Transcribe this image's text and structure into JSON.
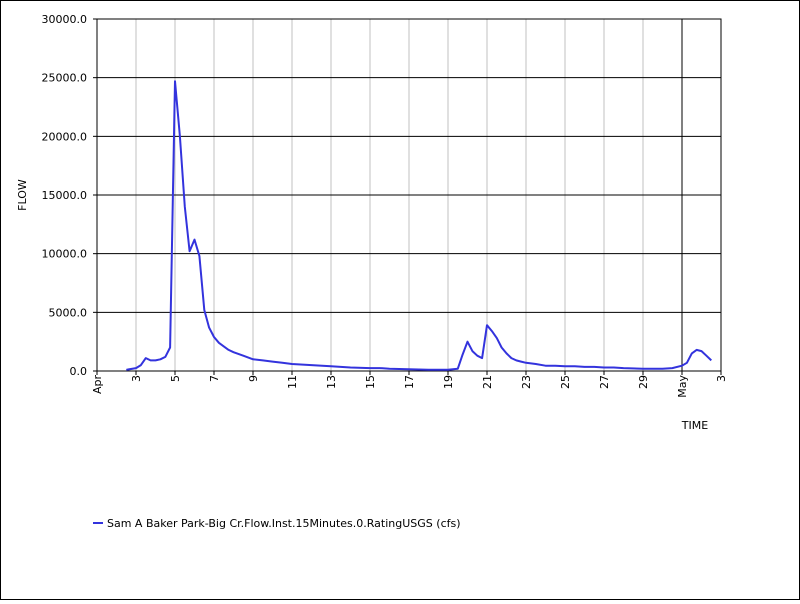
{
  "chart_data": {
    "type": "line",
    "title": "",
    "xlabel": "TIME",
    "ylabel": "FLOW",
    "ylim": [
      0,
      30000
    ],
    "yticks": [
      0,
      5000,
      10000,
      15000,
      20000,
      25000,
      30000
    ],
    "ytick_labels": [
      "0.0",
      "5000.0",
      "10000.0",
      "15000.0",
      "20000.0",
      "25000.0",
      "30000.0"
    ],
    "xlim": [
      "Apr 1",
      "May 3"
    ],
    "xtick_labels": [
      {
        "date": "Apr 1",
        "label": "Apr",
        "major": true
      },
      {
        "date": "Apr 3",
        "label": "3",
        "major": false
      },
      {
        "date": "Apr 5",
        "label": "5",
        "major": false
      },
      {
        "date": "Apr 7",
        "label": "7",
        "major": false
      },
      {
        "date": "Apr 9",
        "label": "9",
        "major": false
      },
      {
        "date": "Apr 11",
        "label": "11",
        "major": false
      },
      {
        "date": "Apr 13",
        "label": "13",
        "major": false
      },
      {
        "date": "Apr 15",
        "label": "15",
        "major": false
      },
      {
        "date": "Apr 17",
        "label": "17",
        "major": false
      },
      {
        "date": "Apr 19",
        "label": "19",
        "major": false
      },
      {
        "date": "Apr 21",
        "label": "21",
        "major": false
      },
      {
        "date": "Apr 23",
        "label": "23",
        "major": false
      },
      {
        "date": "Apr 25",
        "label": "25",
        "major": false
      },
      {
        "date": "Apr 27",
        "label": "27",
        "major": false
      },
      {
        "date": "Apr 29",
        "label": "29",
        "major": false
      },
      {
        "date": "May 1",
        "label": "May",
        "major": true
      },
      {
        "date": "May 3",
        "label": "3",
        "major": false
      }
    ],
    "grid": true,
    "legend_position": "bottom-left",
    "series": [
      {
        "name": "Sam A Baker Park-Big Cr.Flow.Inst.15Minutes.0.RatingUSGS (cfs)",
        "color": "#3333dd",
        "x": [
          "Apr 2 12:00",
          "Apr 3",
          "Apr 3 06:00",
          "Apr 3 12:00",
          "Apr 3 18:00",
          "Apr 4",
          "Apr 4 06:00",
          "Apr 4 12:00",
          "Apr 4 18:00",
          "Apr 5",
          "Apr 5 06:00",
          "Apr 5 12:00",
          "Apr 5 18:00",
          "Apr 6",
          "Apr 6 06:00",
          "Apr 6 12:00",
          "Apr 6 18:00",
          "Apr 7",
          "Apr 7 06:00",
          "Apr 7 12:00",
          "Apr 7 18:00",
          "Apr 8",
          "Apr 8 12:00",
          "Apr 9",
          "Apr 9 12:00",
          "Apr 10",
          "Apr 10 12:00",
          "Apr 11",
          "Apr 12",
          "Apr 13",
          "Apr 14",
          "Apr 15",
          "Apr 15 12:00",
          "Apr 16",
          "Apr 17",
          "Apr 18",
          "Apr 19",
          "Apr 19 12:00",
          "Apr 19 18:00",
          "Apr 20",
          "Apr 20 06:00",
          "Apr 20 12:00",
          "Apr 20 18:00",
          "Apr 21",
          "Apr 21 06:00",
          "Apr 21 12:00",
          "Apr 21 18:00",
          "Apr 22",
          "Apr 22 06:00",
          "Apr 22 12:00",
          "Apr 22 18:00",
          "Apr 23",
          "Apr 23 12:00",
          "Apr 24",
          "Apr 24 12:00",
          "Apr 25",
          "Apr 25 12:00",
          "Apr 26",
          "Apr 26 12:00",
          "Apr 27",
          "Apr 27 12:00",
          "Apr 28",
          "Apr 29",
          "Apr 30",
          "Apr 30 12:00",
          "May 1",
          "May 1 06:00",
          "May 1 12:00",
          "May 1 18:00",
          "May 2",
          "May 2 06:00",
          "May 2 12:00"
        ],
        "values": [
          100,
          250,
          500,
          1100,
          900,
          900,
          1000,
          1200,
          2000,
          24700,
          20000,
          14000,
          10200,
          11200,
          9800,
          5200,
          3700,
          2900,
          2400,
          2100,
          1800,
          1600,
          1300,
          1000,
          900,
          800,
          700,
          600,
          500,
          400,
          300,
          250,
          250,
          200,
          150,
          100,
          100,
          200,
          1400,
          2500,
          1700,
          1300,
          1100,
          3900,
          3400,
          2800,
          2000,
          1500,
          1100,
          900,
          800,
          700,
          600,
          450,
          450,
          400,
          400,
          350,
          350,
          300,
          300,
          250,
          200,
          200,
          250,
          450,
          700,
          1500,
          1800,
          1700,
          1300,
          900
        ]
      }
    ]
  }
}
